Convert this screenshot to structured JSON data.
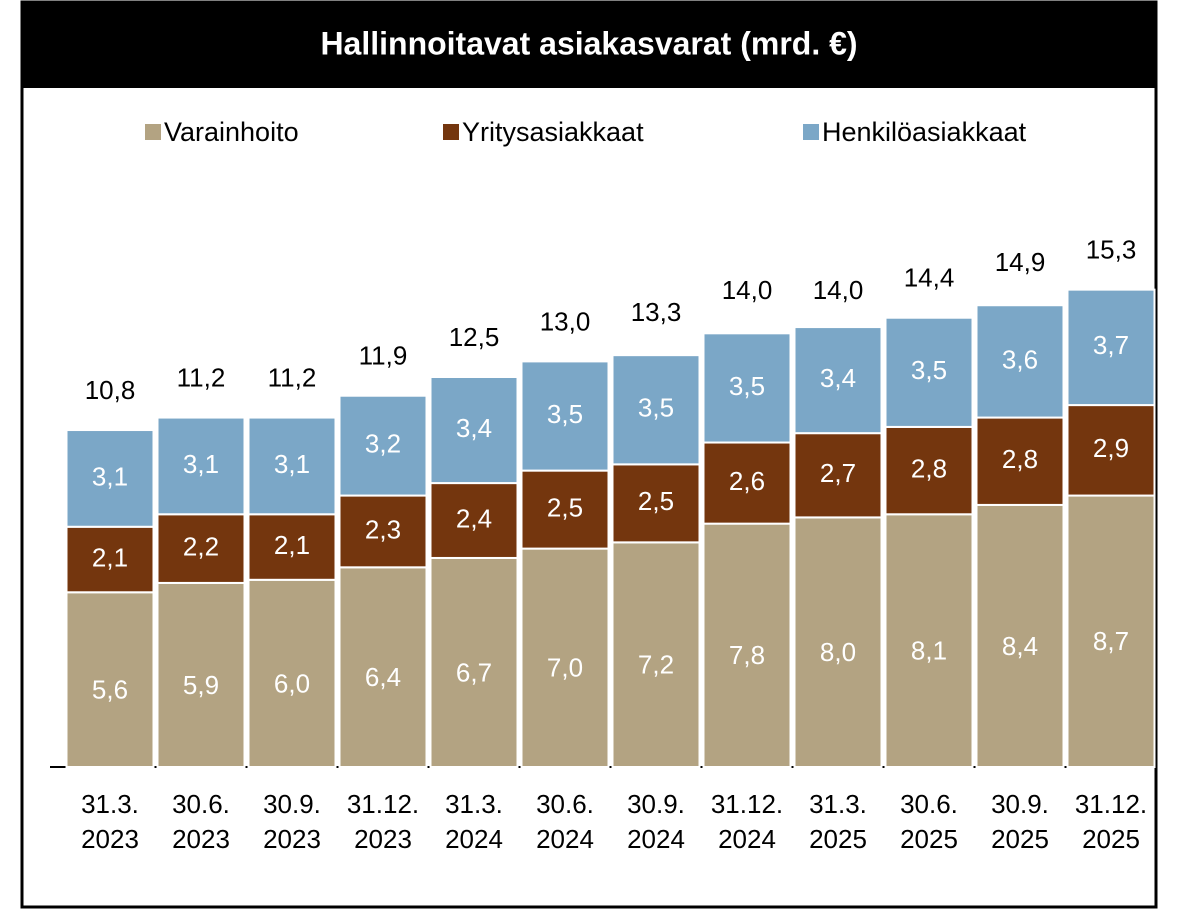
{
  "chart_data": {
    "type": "stacked-bar",
    "title": "Hallinnoitavat asiakasvarat (mrd. €)",
    "categories": [
      "31.3.\n2023",
      "30.6.\n2023",
      "30.9.\n2023",
      "31.12.\n2023",
      "31.3.\n2024",
      "30.6.\n2024",
      "30.9.\n2024",
      "31.12.\n2024",
      "31.3.\n2025",
      "30.6.\n2025",
      "30.9.\n2025",
      "31.12.\n2025"
    ],
    "series": [
      {
        "name": "Varainhoito",
        "color": "#b3a382",
        "values": [
          5.6,
          5.9,
          6.0,
          6.4,
          6.7,
          7.0,
          7.2,
          7.8,
          8.0,
          8.1,
          8.4,
          8.7
        ],
        "value_labels": [
          "5,6",
          "5,9",
          "6,0",
          "6,4",
          "6,7",
          "7,0",
          "7,2",
          "7,8",
          "8,0",
          "8,1",
          "8,4",
          "8,7"
        ]
      },
      {
        "name": "Yritysasiakkaat",
        "color": "#74360e",
        "values": [
          2.1,
          2.2,
          2.1,
          2.3,
          2.4,
          2.5,
          2.5,
          2.6,
          2.7,
          2.8,
          2.8,
          2.9
        ],
        "value_labels": [
          "2,1",
          "2,2",
          "2,1",
          "2,3",
          "2,4",
          "2,5",
          "2,5",
          "2,6",
          "2,7",
          "2,8",
          "2,8",
          "2,9"
        ]
      },
      {
        "name": "Henkilöasiakkaat",
        "color": "#7ba7c7",
        "values": [
          3.1,
          3.1,
          3.1,
          3.2,
          3.4,
          3.5,
          3.5,
          3.5,
          3.4,
          3.5,
          3.6,
          3.7
        ],
        "value_labels": [
          "3,1",
          "3,1",
          "3,1",
          "3,2",
          "3,4",
          "3,5",
          "3,5",
          "3,5",
          "3,4",
          "3,5",
          "3,6",
          "3,7"
        ]
      }
    ],
    "totals": {
      "values": [
        10.8,
        11.2,
        11.2,
        11.9,
        12.5,
        13.0,
        13.3,
        14.0,
        14.0,
        14.4,
        14.9,
        15.3
      ],
      "value_labels": [
        "10,8",
        "11,2",
        "11,2",
        "11,9",
        "12,5",
        "13,0",
        "13,3",
        "14,0",
        "14,0",
        "14,4",
        "14,9",
        "15,3"
      ]
    },
    "ylim": [
      0,
      16
    ],
    "legend": "top"
  }
}
